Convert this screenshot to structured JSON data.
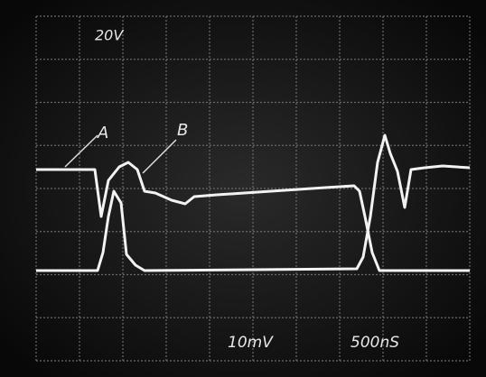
{
  "screen": {
    "labels": {
      "volts": "20V",
      "trace_a": "A",
      "trace_b": "B",
      "sensitivity": "10mV",
      "timebase": "500nS"
    }
  }
}
